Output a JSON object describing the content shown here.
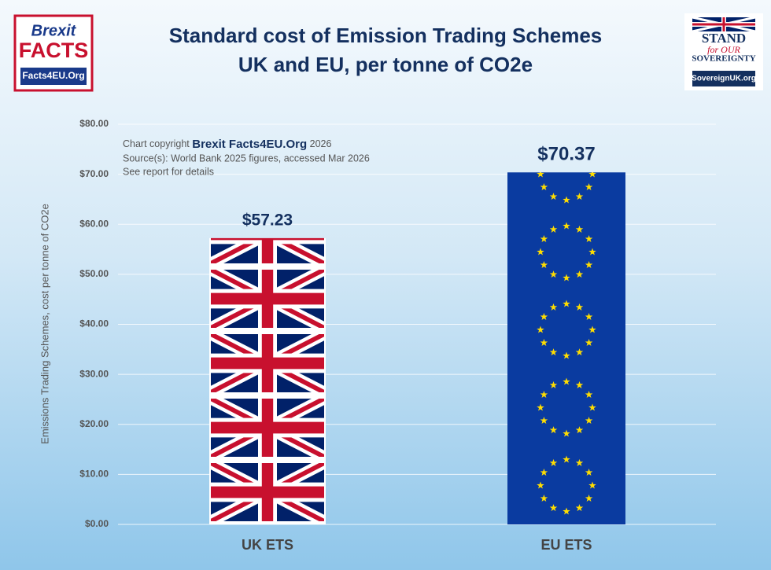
{
  "chart_data": {
    "type": "bar",
    "title": "Standard cost of Emission Trading Schemes",
    "subtitle": "UK and EU, per tonne of CO2e",
    "y_label": "Emissions Trading Schemes, cost per tonne of CO2e",
    "annotations": [
      "Chart copyright",
      "Brexit Facts4EU.Org",
      "2026",
      "Source(s): World Bank 2025 figures, accessed Mar 2026",
      "See report for details"
    ],
    "categories": [
      "UK ETS",
      "EU ETS"
    ],
    "values": [
      57.23,
      70.37
    ],
    "value_labels": [
      "$57.23",
      "$70.37"
    ],
    "ylim": [
      0,
      80
    ],
    "yticks": [
      {
        "value": 0,
        "label": "$0.00"
      },
      {
        "value": 10,
        "label": "$10.00"
      },
      {
        "value": 20,
        "label": "$20.00"
      },
      {
        "value": 30,
        "label": "$30.00"
      },
      {
        "value": 40,
        "label": "$40.00"
      },
      {
        "value": 50,
        "label": "$50.00"
      },
      {
        "value": 60,
        "label": "$60.00"
      },
      {
        "value": 70,
        "label": "$70.00"
      },
      {
        "value": 80,
        "label": "$80.00"
      }
    ],
    "grid": true
  },
  "logos": {
    "left": [
      "Brexit",
      "FACTS",
      "Facts4EU.Org"
    ],
    "right": [
      "STAND",
      "for OUR",
      "SOVEREIGNTY",
      "SovereignUK.org"
    ]
  }
}
